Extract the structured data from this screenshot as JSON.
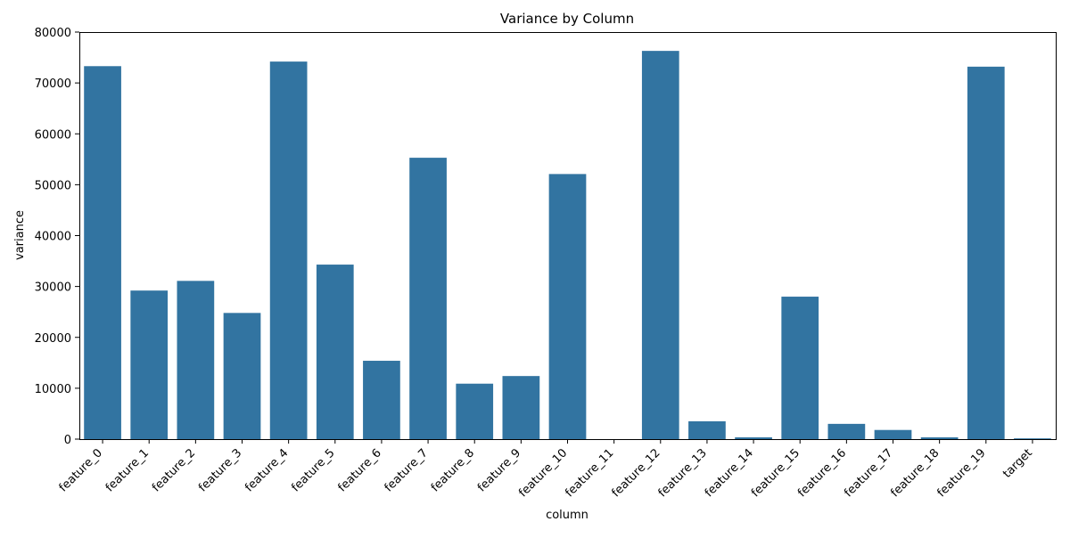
{
  "chart_data": {
    "type": "bar",
    "title": "Variance by Column",
    "xlabel": "column",
    "ylabel": "variance",
    "categories": [
      "feature_0",
      "feature_1",
      "feature_2",
      "feature_3",
      "feature_4",
      "feature_5",
      "feature_6",
      "feature_7",
      "feature_8",
      "feature_9",
      "feature_10",
      "feature_11",
      "feature_12",
      "feature_13",
      "feature_14",
      "feature_15",
      "feature_16",
      "feature_17",
      "feature_18",
      "feature_19",
      "target"
    ],
    "values": [
      73300,
      29200,
      31100,
      24800,
      74200,
      34300,
      15400,
      55300,
      10900,
      12400,
      52100,
      0,
      76300,
      3500,
      350,
      28000,
      3000,
      1800,
      350,
      73200,
      150
    ],
    "ylim": [
      0,
      80000
    ],
    "yticks": [
      0,
      10000,
      20000,
      30000,
      40000,
      50000,
      60000,
      70000,
      80000
    ],
    "bar_color": "#3274a1",
    "grid": false,
    "legend": "none"
  }
}
